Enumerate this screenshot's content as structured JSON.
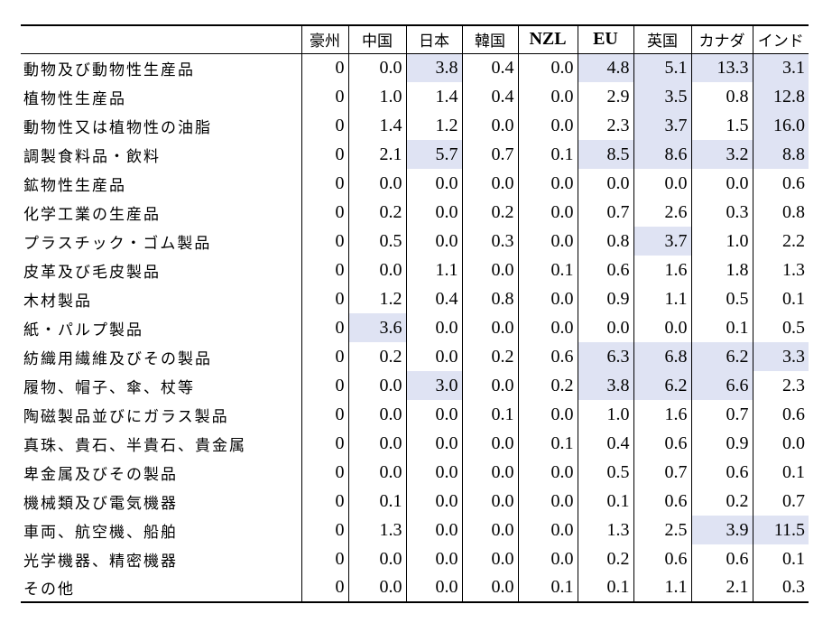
{
  "table": {
    "headers": [
      "",
      "豪州",
      "中国",
      "日本",
      "韓国",
      "NZL",
      "EU",
      "英国",
      "カナダ",
      "インド"
    ],
    "rows": [
      {
        "label": "動物及び動物性生産品",
        "values": [
          "0",
          "0.0",
          "3.8",
          "0.4",
          "0.0",
          "4.8",
          "5.1",
          "13.3",
          "3.1"
        ],
        "highlight": [
          2,
          5,
          6,
          7,
          8
        ]
      },
      {
        "label": "植物性生産品",
        "values": [
          "0",
          "1.0",
          "1.4",
          "0.4",
          "0.0",
          "2.9",
          "3.5",
          "0.8",
          "12.8"
        ],
        "highlight": [
          6,
          8
        ]
      },
      {
        "label": "動物性又は植物性の油脂",
        "values": [
          "0",
          "1.4",
          "1.2",
          "0.0",
          "0.0",
          "2.3",
          "3.7",
          "1.5",
          "16.0"
        ],
        "highlight": [
          6,
          8
        ]
      },
      {
        "label": "調製食料品・飲料",
        "values": [
          "0",
          "2.1",
          "5.7",
          "0.7",
          "0.1",
          "8.5",
          "8.6",
          "3.2",
          "8.8"
        ],
        "highlight": [
          2,
          5,
          6,
          7,
          8
        ]
      },
      {
        "label": "鉱物性生産品",
        "values": [
          "0",
          "0.0",
          "0.0",
          "0.0",
          "0.0",
          "0.0",
          "0.0",
          "0.0",
          "0.6"
        ],
        "highlight": []
      },
      {
        "label": "化学工業の生産品",
        "values": [
          "0",
          "0.2",
          "0.0",
          "0.2",
          "0.0",
          "0.7",
          "2.6",
          "0.3",
          "0.8"
        ],
        "highlight": []
      },
      {
        "label": "プラスチック・ゴム製品",
        "values": [
          "0",
          "0.5",
          "0.0",
          "0.3",
          "0.0",
          "0.8",
          "3.7",
          "1.0",
          "2.2"
        ],
        "highlight": [
          6
        ]
      },
      {
        "label": "皮革及び毛皮製品",
        "values": [
          "0",
          "0.0",
          "1.1",
          "0.0",
          "0.1",
          "0.6",
          "1.6",
          "1.8",
          "1.3"
        ],
        "highlight": []
      },
      {
        "label": "木材製品",
        "values": [
          "0",
          "1.2",
          "0.4",
          "0.8",
          "0.0",
          "0.9",
          "1.1",
          "0.5",
          "0.1"
        ],
        "highlight": []
      },
      {
        "label": "紙・パルプ製品",
        "values": [
          "0",
          "3.6",
          "0.0",
          "0.0",
          "0.0",
          "0.0",
          "0.0",
          "0.1",
          "0.5"
        ],
        "highlight": [
          1
        ]
      },
      {
        "label": "紡織用繊維及びその製品",
        "values": [
          "0",
          "0.2",
          "0.0",
          "0.2",
          "0.6",
          "6.3",
          "6.8",
          "6.2",
          "3.3"
        ],
        "highlight": [
          5,
          6,
          7,
          8
        ]
      },
      {
        "label": "履物、帽子、傘、杖等",
        "values": [
          "0",
          "0.0",
          "3.0",
          "0.0",
          "0.2",
          "3.8",
          "6.2",
          "6.6",
          "2.3"
        ],
        "highlight": [
          2,
          5,
          6,
          7
        ]
      },
      {
        "label": "陶磁製品並びにガラス製品",
        "values": [
          "0",
          "0.0",
          "0.0",
          "0.1",
          "0.0",
          "1.0",
          "1.6",
          "0.7",
          "0.6"
        ],
        "highlight": []
      },
      {
        "label": "真珠、貴石、半貴石、貴金属",
        "values": [
          "0",
          "0.0",
          "0.0",
          "0.0",
          "0.1",
          "0.4",
          "0.6",
          "0.9",
          "0.0"
        ],
        "highlight": []
      },
      {
        "label": "卑金属及びその製品",
        "values": [
          "0",
          "0.0",
          "0.0",
          "0.0",
          "0.0",
          "0.5",
          "0.7",
          "0.6",
          "0.1"
        ],
        "highlight": []
      },
      {
        "label": "機械類及び電気機器",
        "values": [
          "0",
          "0.1",
          "0.0",
          "0.0",
          "0.0",
          "0.1",
          "0.6",
          "0.2",
          "0.7"
        ],
        "highlight": []
      },
      {
        "label": "車両、航空機、船舶",
        "values": [
          "0",
          "1.3",
          "0.0",
          "0.0",
          "0.0",
          "1.3",
          "2.5",
          "3.9",
          "11.5"
        ],
        "highlight": [
          7,
          8
        ]
      },
      {
        "label": "光学機器、精密機器",
        "values": [
          "0",
          "0.0",
          "0.0",
          "0.0",
          "0.0",
          "0.2",
          "0.6",
          "0.6",
          "0.1"
        ],
        "highlight": []
      },
      {
        "label": "その他",
        "values": [
          "0",
          "0.0",
          "0.0",
          "0.0",
          "0.1",
          "0.1",
          "1.1",
          "2.1",
          "0.3"
        ],
        "highlight": []
      }
    ]
  },
  "colors": {
    "highlight": "#dfe3f3"
  }
}
